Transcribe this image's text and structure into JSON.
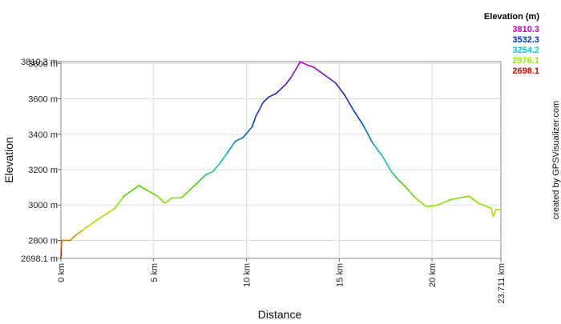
{
  "chart_data": {
    "type": "line",
    "xlabel": "Distance",
    "ylabel": "Elevation",
    "credit": "created by GPSVisualizer.com",
    "legend_title": "Elevation (m)",
    "legend": [
      {
        "label": "3810.3",
        "color": "#cc00cc"
      },
      {
        "label": "3532.3",
        "color": "#0033cc"
      },
      {
        "label": "3254.2",
        "color": "#00cccc"
      },
      {
        "label": "2976.1",
        "color": "#99ee00"
      },
      {
        "label": "2698.1",
        "color": "#dd0000"
      }
    ],
    "xlim": [
      0,
      23.711
    ],
    "ylim": [
      2698.1,
      3810.3
    ],
    "x_ticks": [
      {
        "value": 0,
        "label": "0 km"
      },
      {
        "value": 5,
        "label": "5 km"
      },
      {
        "value": 10,
        "label": "10 km"
      },
      {
        "value": 15,
        "label": "15 km"
      },
      {
        "value": 20,
        "label": "20 km"
      },
      {
        "value": 23.711,
        "label": "23.711 km"
      }
    ],
    "y_ticks": [
      {
        "value": 2698.1,
        "label": "2698.1 m"
      },
      {
        "value": 2800,
        "label": "2800 m"
      },
      {
        "value": 3000,
        "label": "3000 m"
      },
      {
        "value": 3200,
        "label": "3200 m"
      },
      {
        "value": 3400,
        "label": "3400 m"
      },
      {
        "value": 3600,
        "label": "3600 m"
      },
      {
        "value": 3800,
        "label": "3800 m"
      },
      {
        "value": 3810.3,
        "label": "3810.3 m"
      }
    ],
    "grid": true,
    "series": [
      {
        "x": [
          0,
          0.02,
          0.05,
          0.1,
          0.5,
          0.8,
          1.2,
          2.0,
          2.9,
          3.4,
          4.2,
          4.7,
          5.2,
          5.6,
          6.0,
          6.5,
          6.9,
          7.4,
          7.8,
          8.2,
          8.6,
          9.0,
          9.4,
          9.8,
          10.3,
          10.5,
          10.9,
          11.2,
          11.6,
          12.1,
          12.4,
          12.9,
          13.3,
          13.6,
          14.0,
          14.4,
          14.8,
          15.3,
          15.8,
          16.3,
          16.8,
          17.3,
          17.8,
          18.2,
          18.6,
          19.1,
          19.7,
          20.3,
          21.0,
          21.5,
          22.0,
          22.5,
          23.1,
          23.2,
          23.3,
          23.45,
          23.711
        ],
        "y": [
          2698.1,
          2760,
          2800,
          2800,
          2800,
          2830,
          2860,
          2920,
          2980,
          3050,
          3110,
          3080,
          3050,
          3010,
          3040,
          3040,
          3080,
          3130,
          3170,
          3190,
          3240,
          3300,
          3360,
          3380,
          3440,
          3500,
          3580,
          3610,
          3630,
          3680,
          3720,
          3810,
          3790,
          3780,
          3750,
          3720,
          3690,
          3620,
          3530,
          3450,
          3350,
          3280,
          3190,
          3140,
          3100,
          3040,
          2990,
          3000,
          3030,
          3040,
          3050,
          3010,
          2985,
          2980,
          2935,
          2975,
          2975
        ]
      }
    ]
  }
}
